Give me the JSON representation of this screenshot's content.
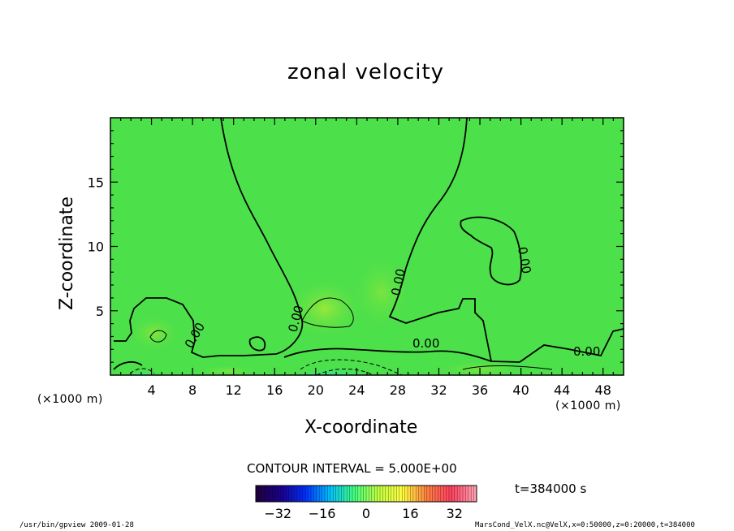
{
  "chart_data": {
    "type": "heatmap",
    "title": "zonal velocity",
    "xlabel": "X-coordinate",
    "ylabel": "Z-coordinate",
    "x_unit": "(×1000 m)",
    "z_unit": "(×1000 m)",
    "xlim": [
      0,
      50
    ],
    "ylim": [
      0,
      20
    ],
    "x_ticks": [
      4,
      8,
      12,
      16,
      20,
      24,
      28,
      32,
      36,
      40,
      44,
      48
    ],
    "y_ticks": [
      5,
      10,
      15
    ],
    "contour_interval": "CONTOUR INTERVAL = 5.000E+00",
    "contour_labels": [
      "0.00",
      "0.00",
      "0.00",
      "0.00",
      "0.00",
      "0.00"
    ],
    "time_label": "t=384000 s",
    "colorbar": {
      "range": [
        -40,
        40
      ],
      "ticks": [
        -32,
        -16,
        0,
        16,
        32
      ],
      "colors": [
        "#200040",
        "#1a0090",
        "#0030ff",
        "#00c0ff",
        "#40ff80",
        "#c0ff40",
        "#ffff40",
        "#ff8040",
        "#ff4060",
        "#ffa0b0"
      ]
    },
    "field_colors": {
      "background": "#4ce04a",
      "light_patch": "#8ce83c",
      "negative_core": "#30e0b0",
      "strong_negative": "#10f0e0"
    }
  },
  "footer": {
    "left": "/usr/bin/gpview   2009-01-28",
    "right": "MarsCond_VelX.nc@VelX,x=0:50000,z=0:20000,t=384000"
  }
}
